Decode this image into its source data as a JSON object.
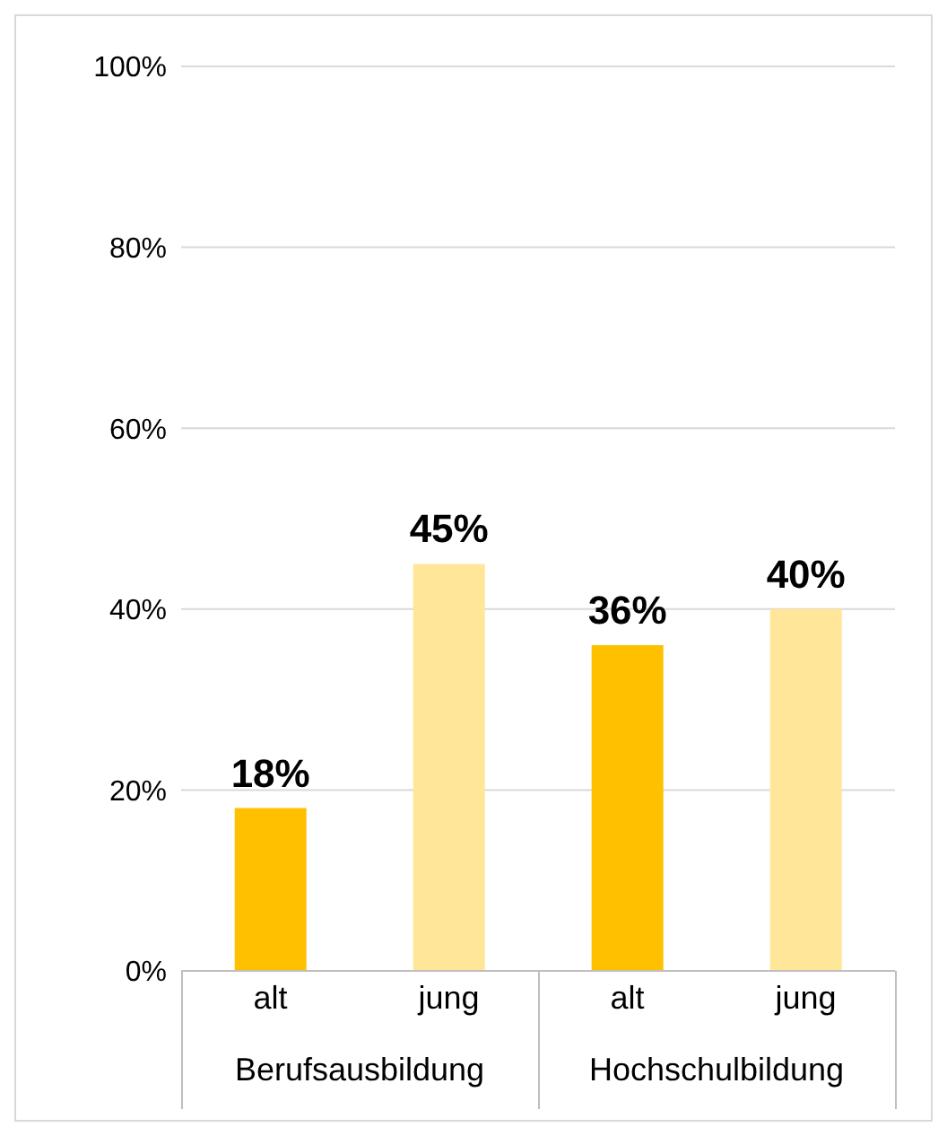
{
  "chart_data": {
    "type": "bar",
    "categories": [
      "alt",
      "jung",
      "alt",
      "jung"
    ],
    "values": [
      18,
      45,
      36,
      40
    ],
    "colors": [
      "#ffc000",
      "#ffe699",
      "#ffc000",
      "#ffe699"
    ],
    "value_labels": [
      "18%",
      "45%",
      "36%",
      "40%"
    ],
    "ylim": [
      0,
      100
    ],
    "yticks": [
      {
        "value": 0,
        "label": "0%"
      },
      {
        "value": 20,
        "label": "20%"
      },
      {
        "value": 40,
        "label": "40%"
      },
      {
        "value": 60,
        "label": "60%"
      },
      {
        "value": 80,
        "label": "80%"
      },
      {
        "value": 100,
        "label": "100%"
      }
    ],
    "grid": "y",
    "annotations": [
      "Berufsausbildung",
      "Hochschulbildung"
    ]
  }
}
